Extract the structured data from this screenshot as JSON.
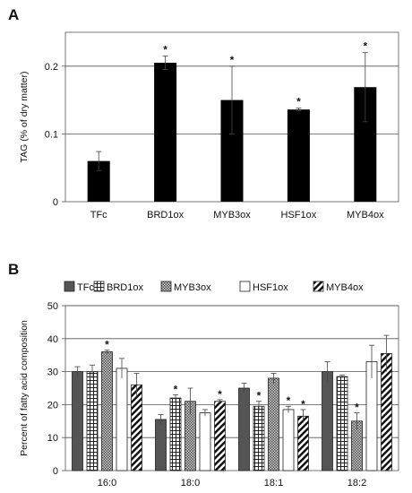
{
  "chart_data": [
    {
      "type": "bar",
      "panel_label": "A",
      "ylabel": "TAG (% of dry matter)",
      "categories": [
        "TFc",
        "BRD1ox",
        "MYB3ox",
        "HSF1ox",
        "MYB4ox"
      ],
      "values": [
        0.06,
        0.205,
        0.15,
        0.136,
        0.169
      ],
      "errors": [
        0.014,
        0.01,
        0.05,
        0.002,
        0.051
      ],
      "significant": [
        false,
        true,
        true,
        true,
        true
      ],
      "significance_marker": "*",
      "ylim": [
        0,
        0.25
      ],
      "yticks": [
        "0",
        "0.1",
        "0.2"
      ],
      "ytick_values": [
        0,
        0.1,
        0.2
      ],
      "grid": true,
      "bar_color": "#000000"
    },
    {
      "type": "bar",
      "panel_label": "B",
      "ylabel": "Percent of fatty acid composition",
      "categories": [
        "16:0",
        "18:0",
        "18:1",
        "18:2"
      ],
      "ylim": [
        0,
        50
      ],
      "yticks": [
        "0",
        "10",
        "20",
        "30",
        "40",
        "50"
      ],
      "ytick_values": [
        0,
        10,
        20,
        30,
        40,
        50
      ],
      "grid": true,
      "legend_position": "top",
      "significance_marker": "*",
      "series": [
        {
          "name": "TFc",
          "pattern": "solid-gray",
          "values": [
            30,
            15.5,
            25,
            30
          ],
          "errors": [
            1.5,
            1.5,
            1.5,
            3
          ],
          "significant": [
            false,
            false,
            false,
            false
          ]
        },
        {
          "name": "BRD1ox",
          "pattern": "grid",
          "values": [
            30,
            22,
            19.5,
            28.5
          ],
          "errors": [
            2,
            1,
            1.5,
            0.5
          ],
          "significant": [
            false,
            true,
            true,
            false
          ]
        },
        {
          "name": "MYB3ox",
          "pattern": "dots",
          "values": [
            36,
            21,
            28,
            15
          ],
          "errors": [
            0.5,
            4,
            1.5,
            2.5
          ],
          "significant": [
            true,
            false,
            false,
            true
          ]
        },
        {
          "name": "HSF1ox",
          "pattern": "white",
          "values": [
            31,
            17.5,
            18.5,
            33
          ],
          "errors": [
            3,
            1,
            1,
            5
          ],
          "significant": [
            false,
            false,
            true,
            false
          ]
        },
        {
          "name": "MYB4ox",
          "pattern": "diagonal",
          "values": [
            26,
            21,
            16.5,
            35.5
          ],
          "errors": [
            3.5,
            0.5,
            2,
            5.5
          ],
          "significant": [
            false,
            true,
            true,
            false
          ]
        }
      ]
    }
  ]
}
